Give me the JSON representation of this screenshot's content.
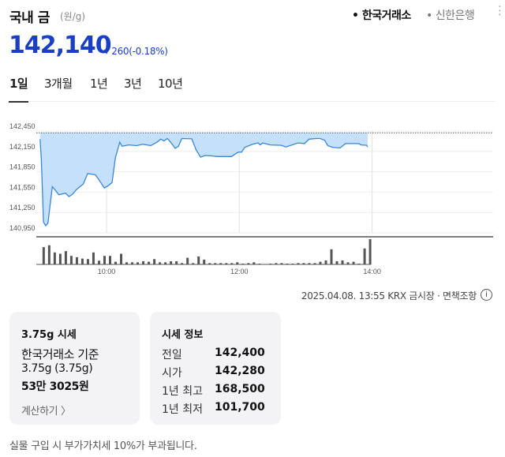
{
  "header": {
    "title": "국내 금",
    "unit": "(원/g)",
    "sources": [
      {
        "label": "• 한국거래소",
        "active": true
      },
      {
        "label": "• 신한은행",
        "active": false
      }
    ],
    "more_icon": "⋮"
  },
  "quote": {
    "price": "142,140",
    "change": "▾ 260(-0.18%)",
    "direction": "down",
    "color": "#1a3fc2"
  },
  "tabs": [
    {
      "label": "1일",
      "active": true
    },
    {
      "label": "3개월"
    },
    {
      "label": "1년"
    },
    {
      "label": "3년"
    },
    {
      "label": "10년"
    }
  ],
  "chart_data": {
    "type": "area",
    "y_ticks": [
      "142,450",
      "142,150",
      "141,850",
      "141,550",
      "141,250",
      "140,950"
    ],
    "y_tick_values": [
      142450,
      142150,
      141850,
      141550,
      141250,
      140950
    ],
    "ylim": [
      140950,
      142450
    ],
    "x_ticks": [
      "10:00",
      "12:00",
      "14:00"
    ],
    "reference_line": 142400,
    "line_color": "#3a86d8",
    "fill_color": "#c5e0fa",
    "grid": true,
    "series": [
      {
        "x": [
          "09:00",
          "09:01",
          "09:03",
          "09:05",
          "09:07",
          "09:11",
          "09:17",
          "09:23",
          "09:26",
          "09:29",
          "09:33",
          "09:39",
          "09:43",
          "09:46",
          "09:50",
          "09:54",
          "09:58",
          "10:01",
          "10:05",
          "10:08",
          "10:12",
          "10:14",
          "10:20",
          "10:27",
          "10:33",
          "10:40",
          "10:46",
          "10:49",
          "10:52",
          "10:55",
          "10:58",
          "11:02",
          "11:05",
          "11:08",
          "11:17",
          "11:21",
          "11:25",
          "11:29",
          "11:34",
          "11:40",
          "11:53",
          "11:59",
          "12:02",
          "12:05",
          "12:12",
          "12:17",
          "12:19",
          "12:21",
          "12:28",
          "12:38",
          "12:42",
          "12:53",
          "12:59",
          "13:03",
          "13:09",
          "13:13",
          "13:17",
          "13:20",
          "13:24",
          "13:31",
          "13:36",
          "13:48",
          "13:50",
          "13:55",
          "13:56"
        ],
        "y": [
          142330,
          142055,
          141110,
          141055,
          141090,
          141630,
          141510,
          141535,
          141485,
          141515,
          141590,
          141670,
          141825,
          141815,
          141805,
          141710,
          141610,
          141640,
          141690,
          142055,
          142285,
          142225,
          142245,
          142235,
          142255,
          142235,
          142290,
          142330,
          142305,
          142340,
          142285,
          142195,
          142225,
          142340,
          142335,
          142170,
          142065,
          142090,
          142085,
          142075,
          142075,
          142140,
          142140,
          142210,
          142255,
          142275,
          142245,
          142275,
          142245,
          142240,
          142215,
          142275,
          142265,
          142330,
          142340,
          142340,
          142315,
          142235,
          142210,
          142200,
          142265,
          142265,
          142245,
          142240,
          142215
        ]
      }
    ],
    "volume": {
      "start": "09:00",
      "interval_min": 5,
      "values": [
        65,
        72,
        45,
        40,
        50,
        32,
        27,
        22,
        20,
        45,
        14,
        32,
        32,
        10,
        40,
        8,
        8,
        8,
        12,
        10,
        20,
        8,
        8,
        12,
        12,
        5,
        25,
        5,
        30,
        18,
        5,
        5,
        5,
        5,
        5,
        8,
        3,
        5,
        8,
        3,
        1,
        3,
        5,
        5,
        3,
        3,
        5,
        5,
        5,
        5,
        10,
        15,
        57,
        12,
        15,
        8,
        10,
        3,
        60,
        95
      ]
    }
  },
  "footer_meta": {
    "timestamp": "2025.04.08. 13:55 KRX 금시장 · 면책조항",
    "info_icon": "i"
  },
  "card_375": {
    "title": "3.75g 시세",
    "basis": "한국거래소 기준",
    "weight": "3.75g (3.75g)",
    "amount": "53만 3025원",
    "link": "계산하기 〉"
  },
  "card_info": {
    "title": "시세 정보",
    "rows": [
      {
        "k": "전일",
        "v": "142,400"
      },
      {
        "k": "시가",
        "v": "142,280"
      },
      {
        "k": "1년 최고",
        "v": "168,500"
      },
      {
        "k": "1년 최저",
        "v": "101,700"
      }
    ]
  },
  "note": "실물 구입 시 부가가치세 10%가 부과됩니다."
}
